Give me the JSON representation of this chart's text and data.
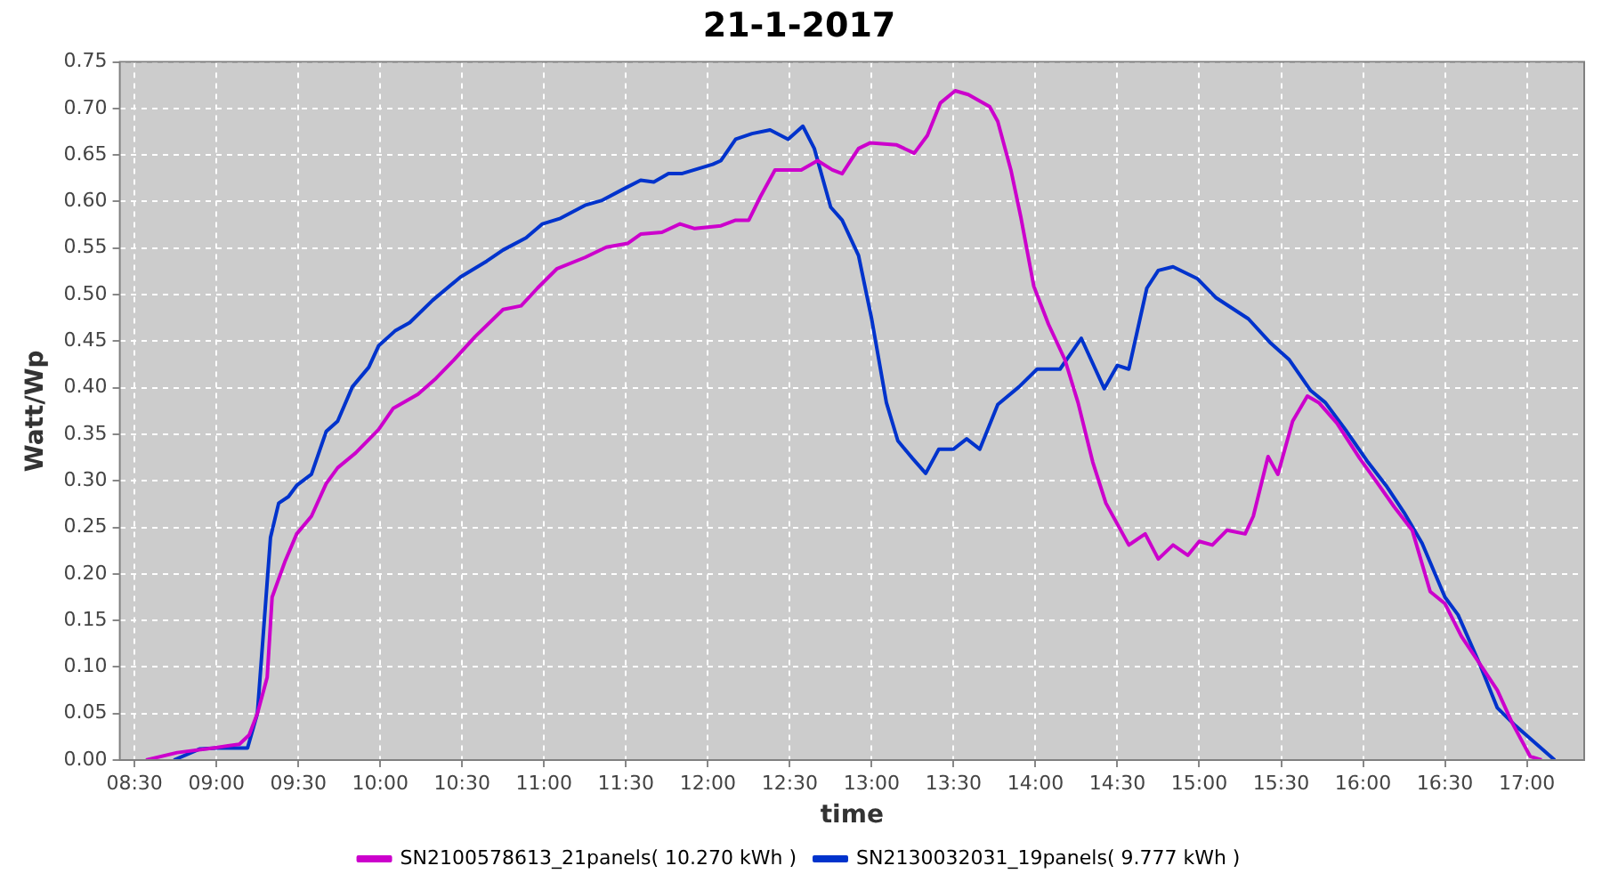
{
  "chart_data": {
    "type": "line",
    "title": "21-1-2017",
    "xlabel": "time",
    "ylabel": "Watt/Wp",
    "xlim": [
      8.41,
      17.35
    ],
    "xticks": [
      {
        "value": 8.5,
        "label": "08:30"
      },
      {
        "value": 9,
        "label": "09:00"
      },
      {
        "value": 9.5,
        "label": "09:30"
      },
      {
        "value": 10,
        "label": "10:00"
      },
      {
        "value": 10.5,
        "label": "10:30"
      },
      {
        "value": 11,
        "label": "11:00"
      },
      {
        "value": 11.5,
        "label": "11:30"
      },
      {
        "value": 12,
        "label": "12:00"
      },
      {
        "value": 12.5,
        "label": "12:30"
      },
      {
        "value": 13,
        "label": "13:00"
      },
      {
        "value": 13.5,
        "label": "13:30"
      },
      {
        "value": 14,
        "label": "14:00"
      },
      {
        "value": 14.5,
        "label": "14:30"
      },
      {
        "value": 15,
        "label": "15:00"
      },
      {
        "value": 15.5,
        "label": "15:30"
      },
      {
        "value": 16,
        "label": "16:00"
      },
      {
        "value": 16.5,
        "label": "16:30"
      },
      {
        "value": 17,
        "label": "17:00"
      }
    ],
    "ylim": [
      0,
      0.75
    ],
    "yticks": [
      {
        "value": 0,
        "label": "0.00"
      },
      {
        "value": 0.05,
        "label": "0.05"
      },
      {
        "value": 0.1,
        "label": "0.10"
      },
      {
        "value": 0.15,
        "label": "0.15"
      },
      {
        "value": 0.2,
        "label": "0.20"
      },
      {
        "value": 0.25,
        "label": "0.25"
      },
      {
        "value": 0.3,
        "label": "0.30"
      },
      {
        "value": 0.35,
        "label": "0.35"
      },
      {
        "value": 0.4,
        "label": "0.40"
      },
      {
        "value": 0.45,
        "label": "0.45"
      },
      {
        "value": 0.5,
        "label": "0.50"
      },
      {
        "value": 0.55,
        "label": "0.55"
      },
      {
        "value": 0.6,
        "label": "0.60"
      },
      {
        "value": 0.65,
        "label": "0.65"
      },
      {
        "value": 0.7,
        "label": "0.70"
      },
      {
        "value": 0.75,
        "label": "0.75"
      }
    ],
    "grid": true,
    "legend": "bottom",
    "series": [
      {
        "name": "SN2100578613_21panels( 10.270 kWh )",
        "color": "#cc00cc",
        "x": [
          8.57,
          8.76,
          8.98,
          9.14,
          9.2,
          9.25,
          9.31,
          9.34,
          9.42,
          9.49,
          9.58,
          9.67,
          9.74,
          9.85,
          9.99,
          10.08,
          10.23,
          10.34,
          10.45,
          10.58,
          10.75,
          10.86,
          10.96,
          11.08,
          11.25,
          11.38,
          11.51,
          11.59,
          11.72,
          11.83,
          11.92,
          12.08,
          12.17,
          12.25,
          12.32,
          12.41,
          12.57,
          12.67,
          12.76,
          12.82,
          12.92,
          12.99,
          13.15,
          13.26,
          13.34,
          13.42,
          13.51,
          13.59,
          13.72,
          13.77,
          13.85,
          13.91,
          13.99,
          14.08,
          14.18,
          14.26,
          14.35,
          14.43,
          14.57,
          14.67,
          14.75,
          14.84,
          14.93,
          15.0,
          15.08,
          15.17,
          15.28,
          15.33,
          15.42,
          15.48,
          15.57,
          15.66,
          15.73,
          15.84,
          15.98,
          16.09,
          16.19,
          16.3,
          16.41,
          16.5,
          16.6,
          16.71,
          16.82,
          16.91,
          17.02,
          17.09
        ],
        "values": [
          0,
          0.008,
          0.013,
          0.017,
          0.027,
          0.05,
          0.089,
          0.175,
          0.214,
          0.243,
          0.262,
          0.297,
          0.314,
          0.33,
          0.355,
          0.378,
          0.393,
          0.41,
          0.43,
          0.455,
          0.484,
          0.488,
          0.507,
          0.528,
          0.54,
          0.551,
          0.555,
          0.565,
          0.567,
          0.576,
          0.571,
          0.574,
          0.58,
          0.58,
          0.605,
          0.634,
          0.634,
          0.644,
          0.634,
          0.63,
          0.657,
          0.663,
          0.661,
          0.652,
          0.671,
          0.706,
          0.719,
          0.715,
          0.702,
          0.686,
          0.634,
          0.584,
          0.509,
          0.468,
          0.43,
          0.384,
          0.32,
          0.276,
          0.231,
          0.243,
          0.216,
          0.231,
          0.22,
          0.235,
          0.231,
          0.247,
          0.243,
          0.262,
          0.326,
          0.307,
          0.364,
          0.391,
          0.384,
          0.362,
          0.324,
          0.297,
          0.272,
          0.247,
          0.181,
          0.168,
          0.133,
          0.104,
          0.075,
          0.04,
          0.004,
          0
        ]
      },
      {
        "name": "SN2130032031_19panels( 9.777 kWh )",
        "color": "#0033cc",
        "x": [
          8.74,
          8.9,
          9.0,
          9.19,
          9.25,
          9.33,
          9.38,
          9.44,
          9.49,
          9.58,
          9.67,
          9.74,
          9.83,
          9.93,
          9.99,
          10.09,
          10.18,
          10.32,
          10.49,
          10.65,
          10.75,
          10.89,
          10.99,
          11.1,
          11.25,
          11.35,
          11.48,
          11.59,
          11.67,
          11.76,
          11.84,
          12.03,
          12.08,
          12.17,
          12.27,
          12.38,
          12.49,
          12.58,
          12.65,
          12.75,
          12.82,
          12.92,
          13.0,
          13.09,
          13.16,
          13.25,
          13.33,
          13.41,
          13.5,
          13.58,
          13.66,
          13.77,
          13.9,
          14.01,
          14.15,
          14.28,
          14.42,
          14.5,
          14.57,
          14.68,
          14.75,
          14.84,
          14.99,
          15.1,
          15.3,
          15.43,
          15.55,
          15.68,
          15.77,
          15.9,
          16.03,
          16.14,
          16.25,
          16.36,
          16.5,
          16.58,
          16.71,
          16.82,
          16.93,
          17.06,
          17.17
        ],
        "values": [
          0,
          0.012,
          0.013,
          0.013,
          0.05,
          0.239,
          0.276,
          0.283,
          0.295,
          0.307,
          0.353,
          0.364,
          0.401,
          0.422,
          0.445,
          0.461,
          0.47,
          0.494,
          0.519,
          0.536,
          0.548,
          0.561,
          0.576,
          0.582,
          0.596,
          0.601,
          0.613,
          0.623,
          0.621,
          0.63,
          0.63,
          0.64,
          0.644,
          0.667,
          0.673,
          0.677,
          0.667,
          0.681,
          0.657,
          0.594,
          0.58,
          0.542,
          0.474,
          0.384,
          0.343,
          0.324,
          0.308,
          0.334,
          0.334,
          0.345,
          0.334,
          0.382,
          0.401,
          0.42,
          0.42,
          0.453,
          0.399,
          0.424,
          0.42,
          0.507,
          0.526,
          0.53,
          0.517,
          0.497,
          0.474,
          0.449,
          0.43,
          0.397,
          0.384,
          0.353,
          0.32,
          0.295,
          0.266,
          0.233,
          0.175,
          0.156,
          0.104,
          0.056,
          0.037,
          0.017,
          0
        ]
      }
    ]
  }
}
